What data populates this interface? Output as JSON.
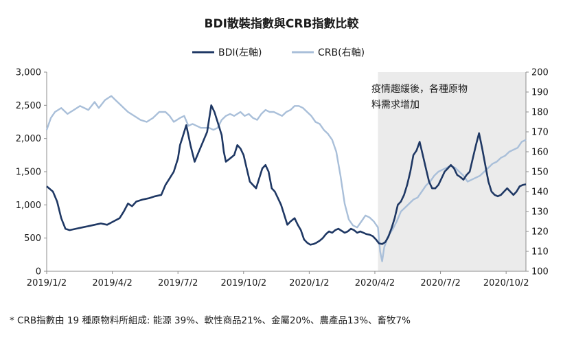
{
  "chart_data": {
    "type": "line",
    "title": "BDI散裝指數與CRB指數比較",
    "x_labels": [
      "2019/1/2",
      "2019/4/2",
      "2019/7/2",
      "2019/10/2",
      "2020/1/2",
      "2020/4/2",
      "2020/7/2",
      "2020/10/2"
    ],
    "x_label_positions": [
      0,
      63,
      126,
      189,
      252,
      315,
      378,
      441
    ],
    "y_left": {
      "ticks": [
        "0",
        "500",
        "1,000",
        "1,500",
        "2,000",
        "2,500",
        "3,000"
      ],
      "range": [
        0,
        3000
      ]
    },
    "y_right": {
      "ticks": [
        "100",
        "110",
        "120",
        "130",
        "140",
        "150",
        "160",
        "170",
        "180",
        "190",
        "200"
      ],
      "range": [
        100,
        200
      ]
    },
    "legend": [
      {
        "name": "BDI(左軸)",
        "color": "#1f3864"
      },
      {
        "name": "CRB(右軸)",
        "color": "#a9bfd9"
      }
    ],
    "shaded_region": {
      "from_index": 318,
      "to_index": 498,
      "color": "#ebebeb"
    },
    "annotation": {
      "line1": "疫情趨緩後，各種原物",
      "line2": "料需求增加"
    },
    "series": [
      {
        "name": "BDI(左軸)",
        "axis": "left",
        "color": "#1f3864",
        "points": [
          [
            0,
            1280
          ],
          [
            6,
            1200
          ],
          [
            10,
            1050
          ],
          [
            14,
            800
          ],
          [
            18,
            640
          ],
          [
            22,
            620
          ],
          [
            28,
            640
          ],
          [
            34,
            660
          ],
          [
            40,
            680
          ],
          [
            46,
            700
          ],
          [
            52,
            720
          ],
          [
            58,
            700
          ],
          [
            64,
            750
          ],
          [
            70,
            800
          ],
          [
            74,
            900
          ],
          [
            78,
            1020
          ],
          [
            82,
            980
          ],
          [
            86,
            1050
          ],
          [
            92,
            1080
          ],
          [
            98,
            1100
          ],
          [
            104,
            1130
          ],
          [
            110,
            1150
          ],
          [
            114,
            1300
          ],
          [
            118,
            1400
          ],
          [
            122,
            1500
          ],
          [
            126,
            1700
          ],
          [
            128,
            1900
          ],
          [
            130,
            2000
          ],
          [
            134,
            2200
          ],
          [
            136,
            2050
          ],
          [
            138,
            1900
          ],
          [
            142,
            1650
          ],
          [
            146,
            1800
          ],
          [
            150,
            1950
          ],
          [
            154,
            2100
          ],
          [
            156,
            2300
          ],
          [
            158,
            2500
          ],
          [
            161,
            2400
          ],
          [
            164,
            2250
          ],
          [
            168,
            2050
          ],
          [
            170,
            1800
          ],
          [
            172,
            1650
          ],
          [
            176,
            1700
          ],
          [
            180,
            1750
          ],
          [
            183,
            1900
          ],
          [
            186,
            1850
          ],
          [
            189,
            1750
          ],
          [
            192,
            1550
          ],
          [
            195,
            1350
          ],
          [
            198,
            1300
          ],
          [
            201,
            1250
          ],
          [
            204,
            1400
          ],
          [
            207,
            1550
          ],
          [
            210,
            1600
          ],
          [
            213,
            1500
          ],
          [
            216,
            1250
          ],
          [
            219,
            1200
          ],
          [
            222,
            1100
          ],
          [
            225,
            1000
          ],
          [
            228,
            850
          ],
          [
            231,
            700
          ],
          [
            234,
            750
          ],
          [
            238,
            800
          ],
          [
            241,
            700
          ],
          [
            244,
            620
          ],
          [
            247,
            480
          ],
          [
            250,
            430
          ],
          [
            253,
            400
          ],
          [
            256,
            410
          ],
          [
            259,
            430
          ],
          [
            262,
            460
          ],
          [
            265,
            500
          ],
          [
            268,
            560
          ],
          [
            271,
            600
          ],
          [
            274,
            580
          ],
          [
            277,
            620
          ],
          [
            280,
            640
          ],
          [
            283,
            610
          ],
          [
            286,
            580
          ],
          [
            289,
            600
          ],
          [
            292,
            640
          ],
          [
            295,
            620
          ],
          [
            298,
            580
          ],
          [
            301,
            600
          ],
          [
            304,
            580
          ],
          [
            307,
            560
          ],
          [
            310,
            550
          ],
          [
            313,
            530
          ],
          [
            316,
            480
          ],
          [
            319,
            420
          ],
          [
            322,
            410
          ],
          [
            325,
            440
          ],
          [
            328,
            520
          ],
          [
            331,
            650
          ],
          [
            334,
            800
          ],
          [
            337,
            1000
          ],
          [
            340,
            1050
          ],
          [
            343,
            1150
          ],
          [
            346,
            1300
          ],
          [
            349,
            1500
          ],
          [
            352,
            1750
          ],
          [
            355,
            1820
          ],
          [
            358,
            1950
          ],
          [
            361,
            1750
          ],
          [
            364,
            1550
          ],
          [
            367,
            1350
          ],
          [
            370,
            1250
          ],
          [
            373,
            1250
          ],
          [
            376,
            1300
          ],
          [
            379,
            1400
          ],
          [
            382,
            1500
          ],
          [
            385,
            1550
          ],
          [
            388,
            1600
          ],
          [
            391,
            1550
          ],
          [
            394,
            1450
          ],
          [
            397,
            1420
          ],
          [
            400,
            1380
          ],
          [
            403,
            1450
          ],
          [
            406,
            1500
          ],
          [
            409,
            1700
          ],
          [
            412,
            1900
          ],
          [
            415,
            2080
          ],
          [
            418,
            1850
          ],
          [
            421,
            1600
          ],
          [
            424,
            1350
          ],
          [
            427,
            1200
          ],
          [
            430,
            1150
          ],
          [
            433,
            1130
          ],
          [
            436,
            1150
          ],
          [
            439,
            1200
          ],
          [
            442,
            1250
          ],
          [
            445,
            1200
          ],
          [
            448,
            1150
          ],
          [
            451,
            1200
          ],
          [
            454,
            1280
          ],
          [
            457,
            1300
          ],
          [
            460,
            1310
          ]
        ]
      },
      {
        "name": "CRB(右軸)",
        "axis": "right",
        "color": "#a9bfd9",
        "points": [
          [
            0,
            171
          ],
          [
            4,
            177
          ],
          [
            8,
            180
          ],
          [
            14,
            182
          ],
          [
            20,
            179
          ],
          [
            26,
            181
          ],
          [
            32,
            183
          ],
          [
            40,
            181
          ],
          [
            46,
            185
          ],
          [
            50,
            182
          ],
          [
            56,
            186
          ],
          [
            62,
            188
          ],
          [
            66,
            186
          ],
          [
            70,
            184
          ],
          [
            74,
            182
          ],
          [
            78,
            180
          ],
          [
            84,
            178
          ],
          [
            90,
            176
          ],
          [
            96,
            175
          ],
          [
            102,
            177
          ],
          [
            108,
            180
          ],
          [
            114,
            180
          ],
          [
            118,
            178
          ],
          [
            122,
            175
          ],
          [
            128,
            177
          ],
          [
            132,
            178
          ],
          [
            136,
            173
          ],
          [
            140,
            174
          ],
          [
            144,
            173
          ],
          [
            148,
            172
          ],
          [
            152,
            172
          ],
          [
            156,
            172
          ],
          [
            160,
            171
          ],
          [
            164,
            172
          ],
          [
            168,
            176
          ],
          [
            172,
            178
          ],
          [
            176,
            179
          ],
          [
            180,
            178
          ],
          [
            186,
            180
          ],
          [
            190,
            178
          ],
          [
            194,
            179
          ],
          [
            198,
            177
          ],
          [
            202,
            176
          ],
          [
            206,
            179
          ],
          [
            210,
            181
          ],
          [
            214,
            180
          ],
          [
            218,
            180
          ],
          [
            222,
            179
          ],
          [
            226,
            178
          ],
          [
            230,
            180
          ],
          [
            234,
            181
          ],
          [
            238,
            183
          ],
          [
            242,
            183
          ],
          [
            246,
            182
          ],
          [
            250,
            180
          ],
          [
            254,
            178
          ],
          [
            258,
            175
          ],
          [
            262,
            174
          ],
          [
            266,
            171
          ],
          [
            270,
            169
          ],
          [
            274,
            166
          ],
          [
            278,
            160
          ],
          [
            282,
            148
          ],
          [
            286,
            134
          ],
          [
            290,
            126
          ],
          [
            294,
            123
          ],
          [
            298,
            122
          ],
          [
            302,
            125
          ],
          [
            306,
            128
          ],
          [
            310,
            127
          ],
          [
            314,
            125
          ],
          [
            318,
            122
          ],
          [
            320,
            110
          ],
          [
            322,
            105
          ],
          [
            324,
            112
          ],
          [
            328,
            118
          ],
          [
            332,
            121
          ],
          [
            336,
            125
          ],
          [
            340,
            130
          ],
          [
            344,
            132
          ],
          [
            348,
            134
          ],
          [
            352,
            136
          ],
          [
            356,
            137
          ],
          [
            360,
            140
          ],
          [
            364,
            143
          ],
          [
            368,
            145
          ],
          [
            372,
            148
          ],
          [
            376,
            150
          ],
          [
            380,
            151
          ],
          [
            384,
            152
          ],
          [
            388,
            153
          ],
          [
            392,
            152
          ],
          [
            396,
            150
          ],
          [
            400,
            148
          ],
          [
            404,
            145
          ],
          [
            408,
            146
          ],
          [
            412,
            147
          ],
          [
            416,
            148
          ],
          [
            420,
            150
          ],
          [
            424,
            152
          ],
          [
            428,
            154
          ],
          [
            432,
            155
          ],
          [
            436,
            157
          ],
          [
            440,
            158
          ],
          [
            444,
            160
          ],
          [
            448,
            161
          ],
          [
            452,
            162
          ],
          [
            456,
            165
          ],
          [
            460,
            166
          ]
        ]
      }
    ]
  },
  "footnote": "* CRB指數由 19 種原物料所組成: 能源 39%、軟性商品21%、金屬20%、農產品13%、畜牧7%"
}
